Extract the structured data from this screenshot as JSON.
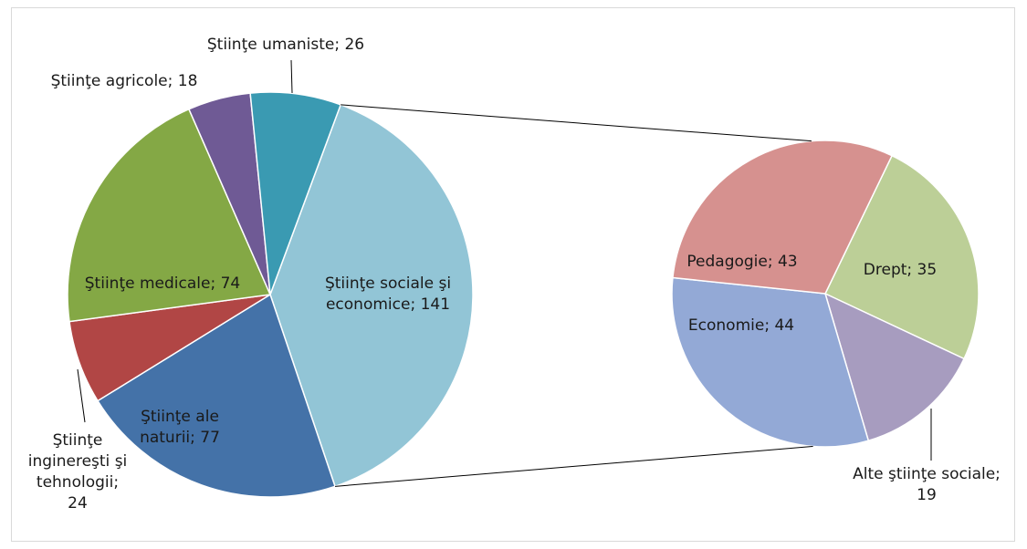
{
  "chart_data": [
    {
      "type": "pie",
      "slices": [
        {
          "label_lines": [
            "Ştiinţe sociale şi",
            "economice; 141"
          ],
          "value": 141,
          "color": "#92c5d6"
        },
        {
          "label_lines": [
            "Ştiinţe ale",
            "naturii; 77"
          ],
          "value": 77,
          "color": "#4472a8"
        },
        {
          "label_lines": [
            "Ştiinţe",
            "inginereşti şi",
            "tehnologii;",
            "24"
          ],
          "value": 24,
          "color": "#b14645"
        },
        {
          "label_lines": [
            "Ştiinţe medicale; 74"
          ],
          "value": 74,
          "color": "#84a845"
        },
        {
          "label_lines": [
            "Ştiinţe agricole; 18"
          ],
          "value": 18,
          "color": "#6f5a95"
        },
        {
          "label_lines": [
            "Ştiinţe umaniste; 26"
          ],
          "value": 26,
          "color": "#3a9ab2"
        }
      ]
    },
    {
      "type": "pie",
      "slices": [
        {
          "label_lines": [
            "Drept; 35"
          ],
          "value": 35,
          "color": "#bccf97"
        },
        {
          "label_lines": [
            "Alte ştiinţe sociale;",
            "19"
          ],
          "value": 19,
          "color": "#a79cbf"
        },
        {
          "label_lines": [
            "Economie; 44"
          ],
          "value": 44,
          "color": "#93a9d6"
        },
        {
          "label_lines": [
            "Pedagogie; 43"
          ],
          "value": 43,
          "color": "#d6918f"
        }
      ]
    }
  ]
}
